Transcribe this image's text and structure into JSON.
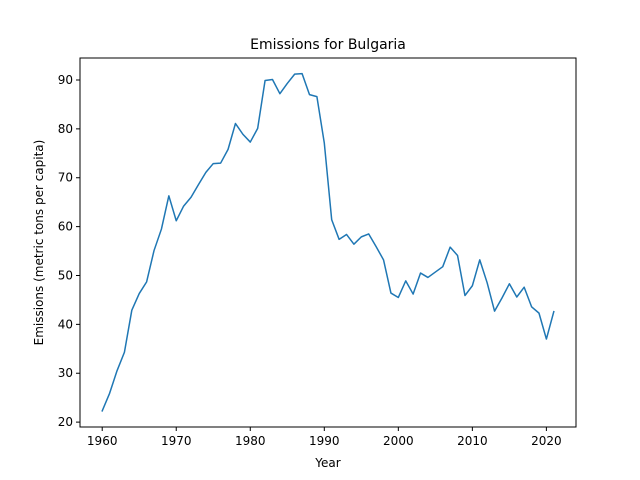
{
  "chart_data": {
    "type": "line",
    "title": "Emissions for Bulgaria",
    "xlabel": "Year",
    "ylabel": "Emissions (metric tons per capita)",
    "xlim": [
      1957,
      2024
    ],
    "ylim": [
      19,
      94.5
    ],
    "xticks": [
      1960,
      1970,
      1980,
      1990,
      2000,
      2010,
      2020
    ],
    "yticks": [
      20,
      30,
      40,
      50,
      60,
      70,
      80,
      90
    ],
    "grid": false,
    "line_color": "#1f77b4",
    "series": [
      {
        "x": [
          1960,
          1961,
          1962,
          1963,
          1964,
          1965,
          1966,
          1967,
          1968,
          1969,
          1970,
          1971,
          1972,
          1973,
          1974,
          1975,
          1976,
          1977,
          1978,
          1979,
          1980,
          1981,
          1982,
          1983,
          1984,
          1985,
          1986,
          1987,
          1988,
          1989,
          1990,
          1991,
          1992,
          1993,
          1994,
          1995,
          1996,
          1997,
          1998,
          1999,
          2000,
          2001,
          2002,
          2003,
          2004,
          2005,
          2006,
          2007,
          2008,
          2009,
          2010,
          2011,
          2012,
          2013,
          2014,
          2015,
          2016,
          2017,
          2018,
          2019,
          2020,
          2021
        ],
        "values": [
          22.3,
          25.9,
          30.5,
          34.3,
          42.9,
          46.3,
          48.7,
          55.1,
          59.5,
          66.3,
          61.2,
          64.2,
          66.0,
          68.6,
          71.1,
          72.9,
          73.0,
          75.8,
          81.1,
          78.9,
          77.3,
          80.1,
          89.9,
          90.1,
          87.2,
          89.3,
          91.2,
          91.3,
          87.0,
          86.6,
          77.1,
          61.4,
          57.4,
          58.4,
          56.4,
          57.9,
          58.5,
          55.9,
          53.2,
          46.4,
          45.5,
          48.9,
          46.2,
          50.5,
          49.6,
          50.7,
          51.8,
          55.8,
          54.1,
          45.9,
          47.9,
          53.2,
          48.5,
          42.7,
          45.4,
          48.3,
          45.6,
          47.6,
          43.6,
          42.3,
          37.0,
          42.6
        ]
      }
    ]
  }
}
